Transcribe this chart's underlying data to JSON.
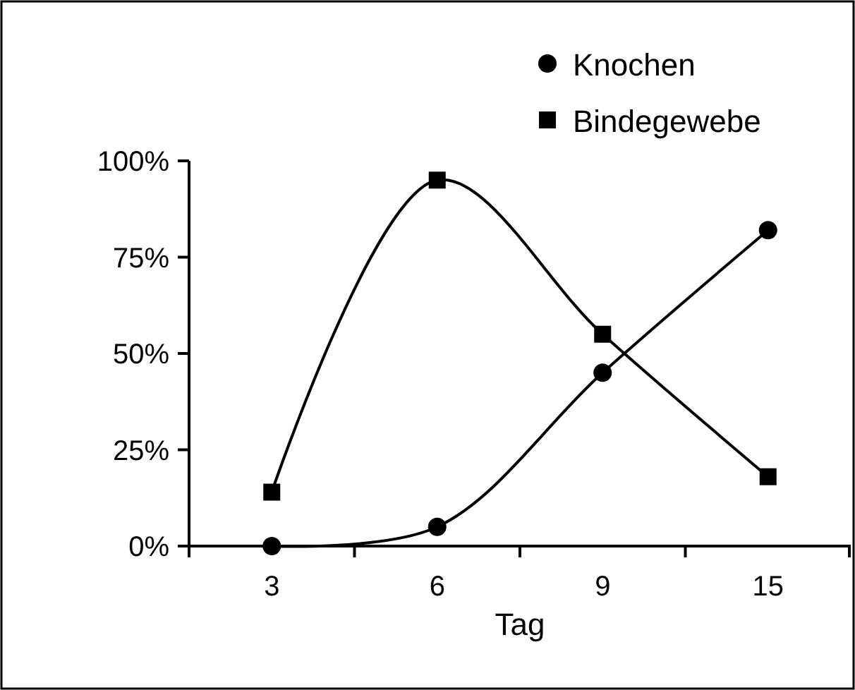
{
  "chart_data": {
    "type": "line",
    "xlabel": "Tag",
    "categories": [
      "3",
      "6",
      "9",
      "15"
    ],
    "series": [
      {
        "name": "Knochen",
        "color": "#000000",
        "marker": "circle",
        "values": [
          0,
          5,
          45,
          82
        ]
      },
      {
        "name": "Bindegewebe",
        "color": "#000000",
        "marker": "square",
        "values": [
          14,
          95,
          55,
          18
        ]
      }
    ],
    "ylim": [
      0,
      100
    ],
    "yticks": [
      {
        "value": 0,
        "label": "0%"
      },
      {
        "value": 25,
        "label": "25%"
      },
      {
        "value": 50,
        "label": "50%"
      },
      {
        "value": 75,
        "label": "75%"
      },
      {
        "value": 100,
        "label": "100%"
      }
    ],
    "grid": false,
    "legend": "top right",
    "line_style": "solid"
  }
}
